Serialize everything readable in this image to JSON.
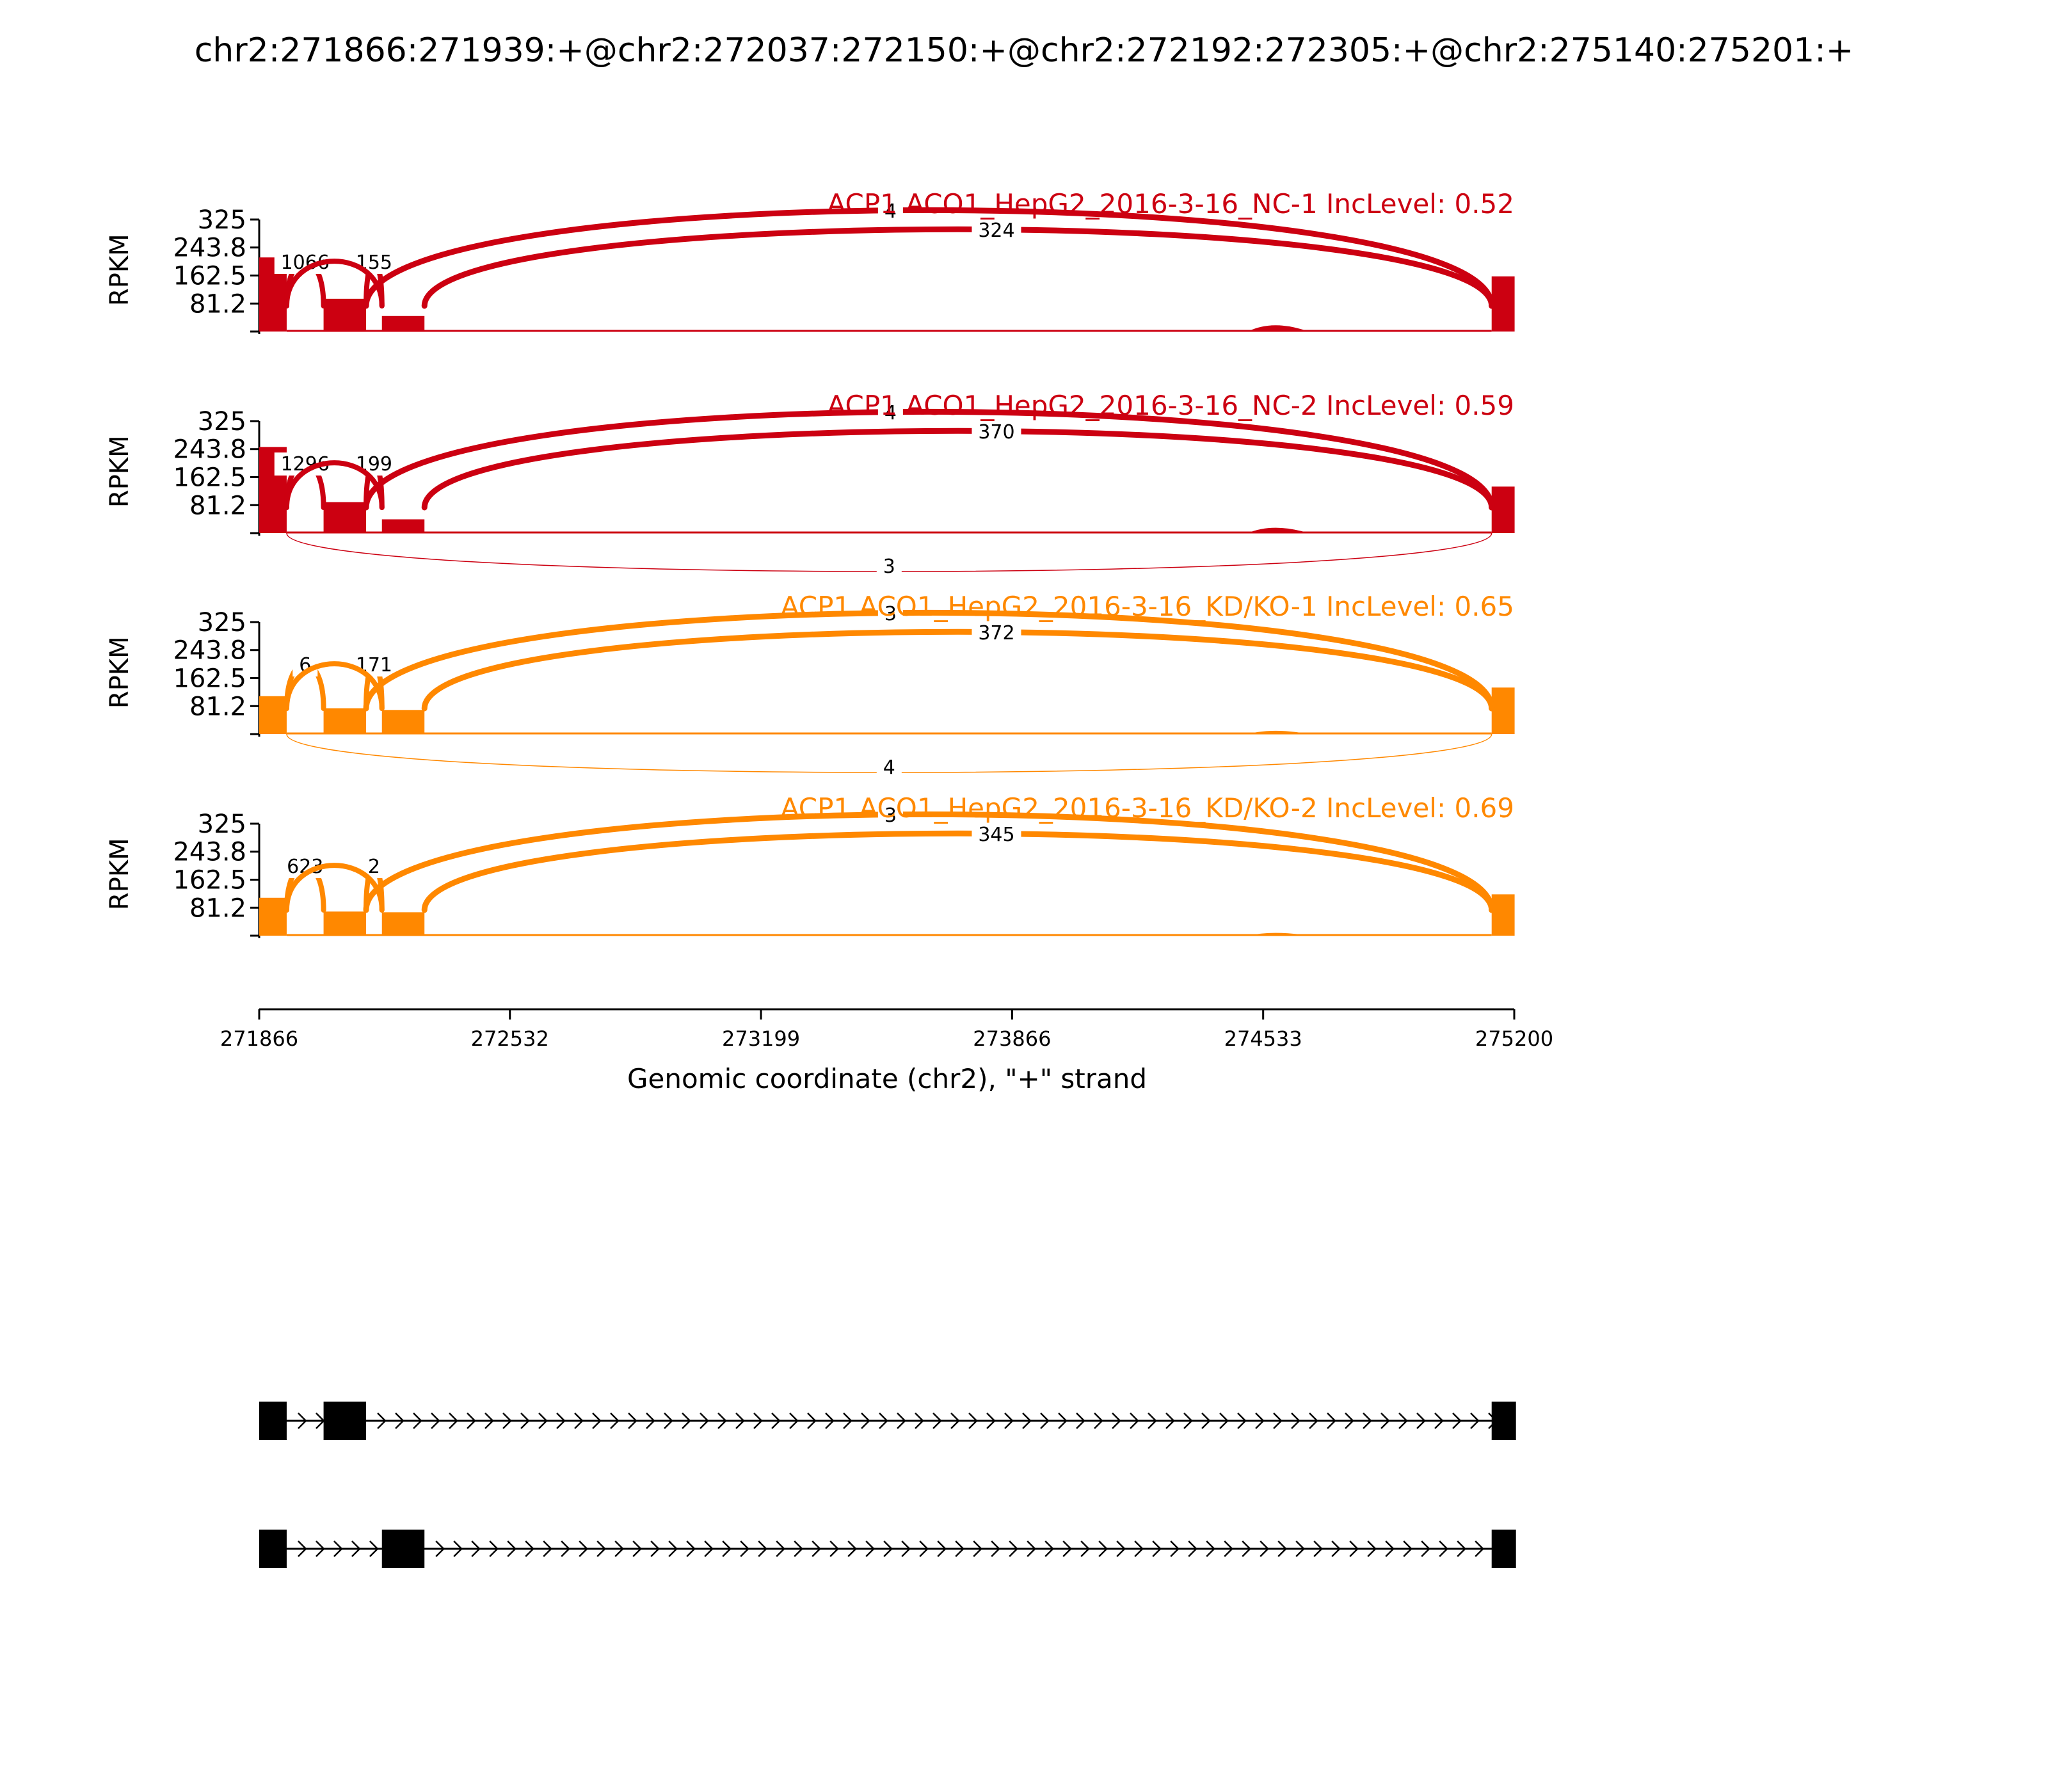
{
  "chart_data": {
    "type": "sashimi",
    "title": "chr2:271866:271939:+@chr2:272037:272150:+@chr2:272192:272305:+@chr2:275140:275201:+",
    "ylabel": "RPKM",
    "yticks": [
      "325",
      "243.8",
      "162.5",
      "81.2"
    ],
    "ylim": [
      0,
      325
    ],
    "xlabel": "Genomic coordinate (chr2), \"+\" strand",
    "xlim": [
      271866,
      275200
    ],
    "xticks": [
      271866,
      272532,
      273199,
      273866,
      274533,
      275200
    ],
    "exons": [
      [
        271866,
        271939
      ],
      [
        272037,
        272150
      ],
      [
        272192,
        272305
      ],
      [
        275140,
        275201
      ]
    ],
    "colors": {
      "NC": "#cc0011",
      "KD": "#ff8800",
      "model": "#000000"
    },
    "samples": [
      {
        "label": "ACP1 ACO1_HepG2_2016-3-16_NC-1 IncLevel: 0.52",
        "color": "#cc0011",
        "exon_coverage": [
          215,
          95,
          45,
          160
        ],
        "intron_peak": {
          "x": 274560,
          "value": 25
        },
        "junctions": [
          {
            "from": 271939,
            "to": 272037,
            "count": "1066",
            "side": "above"
          },
          {
            "from": 272150,
            "to": 272192,
            "count": "155",
            "side": "above"
          },
          {
            "from": 271939,
            "to": 272192,
            "count": "",
            "side": "above"
          },
          {
            "from": 272150,
            "to": 275140,
            "count": "4",
            "side": "above"
          },
          {
            "from": 272305,
            "to": 275140,
            "count": "324",
            "side": "above"
          }
        ]
      },
      {
        "label": "ACP1 ACO1_HepG2_2016-3-16_NC-2 IncLevel: 0.59",
        "color": "#cc0011",
        "exon_coverage": [
          250,
          90,
          40,
          135
        ],
        "intron_peak": {
          "x": 274560,
          "value": 20
        },
        "junctions": [
          {
            "from": 271939,
            "to": 272037,
            "count": "1296",
            "side": "above"
          },
          {
            "from": 272150,
            "to": 272192,
            "count": "199",
            "side": "above"
          },
          {
            "from": 271939,
            "to": 272192,
            "count": "",
            "side": "above"
          },
          {
            "from": 272150,
            "to": 275140,
            "count": "4",
            "side": "above"
          },
          {
            "from": 272305,
            "to": 275140,
            "count": "370",
            "side": "above"
          },
          {
            "from": 271939,
            "to": 275140,
            "count": "3",
            "side": "below"
          }
        ]
      },
      {
        "label": "ACP1 ACO1_HepG2_2016-3-16_KD/KO-1 IncLevel: 0.65",
        "color": "#ff8800",
        "exon_coverage": [
          110,
          75,
          70,
          135
        ],
        "intron_peak": {
          "x": 274560,
          "value": 8
        },
        "junctions": [
          {
            "from": 271939,
            "to": 272037,
            "count": "6",
            "side": "above"
          },
          {
            "from": 272150,
            "to": 272192,
            "count": "171",
            "side": "above"
          },
          {
            "from": 271939,
            "to": 272192,
            "count": "",
            "side": "above"
          },
          {
            "from": 272150,
            "to": 275140,
            "count": "3",
            "side": "above"
          },
          {
            "from": 272305,
            "to": 275140,
            "count": "372",
            "side": "above"
          },
          {
            "from": 271939,
            "to": 275140,
            "count": "4",
            "side": "below"
          }
        ]
      },
      {
        "label": "ACP1 ACO1_HepG2_2016-3-16_KD/KO-2 IncLevel: 0.69",
        "color": "#ff8800",
        "exon_coverage": [
          110,
          70,
          68,
          120
        ],
        "intron_peak": {
          "x": 274560,
          "value": 5
        },
        "junctions": [
          {
            "from": 271939,
            "to": 272037,
            "count": "623",
            "side": "above"
          },
          {
            "from": 272150,
            "to": 272192,
            "count": "2",
            "side": "above"
          },
          {
            "from": 271939,
            "to": 272192,
            "count": "",
            "side": "above"
          },
          {
            "from": 272150,
            "to": 275140,
            "count": "3",
            "side": "above"
          },
          {
            "from": 272305,
            "to": 275140,
            "count": "345",
            "side": "above"
          }
        ]
      }
    ],
    "isoforms": [
      {
        "exons": [
          [
            271866,
            271939
          ],
          [
            272037,
            272150
          ],
          [
            275140,
            275201
          ]
        ]
      },
      {
        "exons": [
          [
            271866,
            271939
          ],
          [
            272192,
            272305
          ],
          [
            275140,
            275201
          ]
        ]
      }
    ]
  }
}
